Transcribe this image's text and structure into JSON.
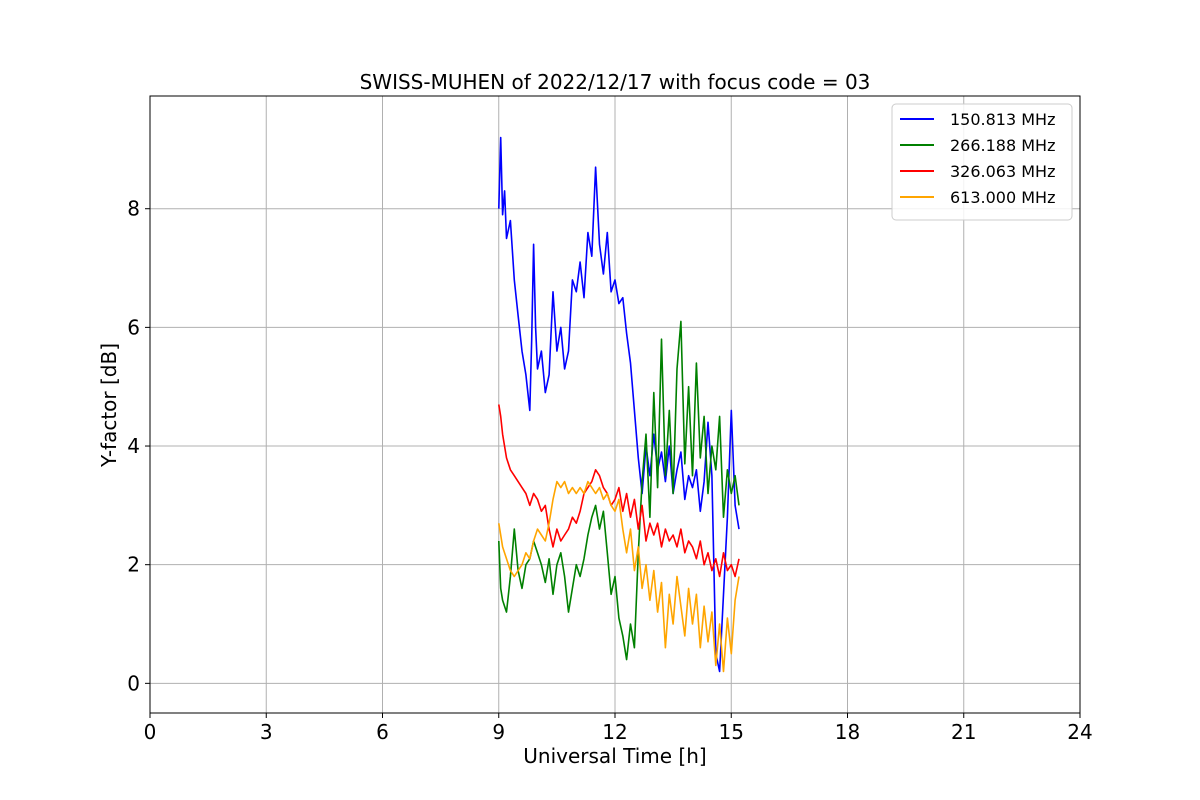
{
  "chart_data": {
    "type": "line",
    "title": "SWISS-MUHEN of 2022/12/17 with focus code = 03",
    "xlabel": "Universal Time [h]",
    "ylabel": "Y-factor [dB]",
    "xlim": [
      0,
      24
    ],
    "ylim": [
      -0.5,
      9.9
    ],
    "xticks": [
      0,
      3,
      6,
      9,
      12,
      15,
      18,
      21,
      24
    ],
    "yticks": [
      0,
      2,
      4,
      6,
      8
    ],
    "grid": true,
    "legend_position": "top-right",
    "series": [
      {
        "name": "150.813 MHz",
        "color": "#0000ff",
        "points": [
          [
            9.0,
            8.0
          ],
          [
            9.05,
            9.2
          ],
          [
            9.1,
            7.9
          ],
          [
            9.15,
            8.3
          ],
          [
            9.2,
            7.5
          ],
          [
            9.3,
            7.8
          ],
          [
            9.4,
            6.8
          ],
          [
            9.5,
            6.2
          ],
          [
            9.6,
            5.6
          ],
          [
            9.7,
            5.2
          ],
          [
            9.8,
            4.6
          ],
          [
            9.85,
            5.8
          ],
          [
            9.9,
            7.4
          ],
          [
            9.95,
            6.0
          ],
          [
            10.0,
            5.3
          ],
          [
            10.1,
            5.6
          ],
          [
            10.2,
            4.9
          ],
          [
            10.3,
            5.2
          ],
          [
            10.4,
            6.6
          ],
          [
            10.5,
            5.6
          ],
          [
            10.6,
            6.0
          ],
          [
            10.7,
            5.3
          ],
          [
            10.8,
            5.6
          ],
          [
            10.9,
            6.8
          ],
          [
            11.0,
            6.6
          ],
          [
            11.1,
            7.1
          ],
          [
            11.2,
            6.5
          ],
          [
            11.3,
            7.6
          ],
          [
            11.4,
            7.2
          ],
          [
            11.5,
            8.7
          ],
          [
            11.6,
            7.4
          ],
          [
            11.7,
            6.9
          ],
          [
            11.8,
            7.6
          ],
          [
            11.9,
            6.6
          ],
          [
            12.0,
            6.8
          ],
          [
            12.1,
            6.4
          ],
          [
            12.2,
            6.5
          ],
          [
            12.3,
            5.9
          ],
          [
            12.4,
            5.4
          ],
          [
            12.5,
            4.6
          ],
          [
            12.6,
            3.8
          ],
          [
            12.7,
            3.2
          ],
          [
            12.8,
            4.0
          ],
          [
            12.9,
            3.5
          ],
          [
            13.0,
            4.2
          ],
          [
            13.1,
            3.6
          ],
          [
            13.2,
            3.9
          ],
          [
            13.3,
            3.4
          ],
          [
            13.4,
            4.0
          ],
          [
            13.5,
            3.2
          ],
          [
            13.6,
            3.6
          ],
          [
            13.7,
            3.9
          ],
          [
            13.8,
            3.1
          ],
          [
            13.9,
            3.5
          ],
          [
            14.0,
            3.3
          ],
          [
            14.1,
            3.6
          ],
          [
            14.2,
            2.9
          ],
          [
            14.3,
            3.4
          ],
          [
            14.4,
            4.4
          ],
          [
            14.5,
            3.5
          ],
          [
            14.6,
            0.5
          ],
          [
            14.7,
            0.2
          ],
          [
            14.8,
            1.5
          ],
          [
            14.9,
            2.8
          ],
          [
            15.0,
            4.6
          ],
          [
            15.1,
            3.0
          ],
          [
            15.2,
            2.6
          ]
        ]
      },
      {
        "name": "266.188 MHz",
        "color": "#008000",
        "points": [
          [
            9.0,
            2.4
          ],
          [
            9.05,
            1.6
          ],
          [
            9.1,
            1.4
          ],
          [
            9.2,
            1.2
          ],
          [
            9.3,
            1.8
          ],
          [
            9.4,
            2.6
          ],
          [
            9.5,
            1.9
          ],
          [
            9.6,
            1.6
          ],
          [
            9.7,
            2.0
          ],
          [
            9.8,
            2.1
          ],
          [
            9.9,
            2.4
          ],
          [
            10.0,
            2.2
          ],
          [
            10.1,
            2.0
          ],
          [
            10.2,
            1.7
          ],
          [
            10.3,
            2.1
          ],
          [
            10.4,
            1.5
          ],
          [
            10.5,
            2.0
          ],
          [
            10.6,
            2.2
          ],
          [
            10.7,
            1.8
          ],
          [
            10.8,
            1.2
          ],
          [
            10.9,
            1.6
          ],
          [
            11.0,
            2.0
          ],
          [
            11.1,
            1.8
          ],
          [
            11.2,
            2.1
          ],
          [
            11.3,
            2.5
          ],
          [
            11.4,
            2.8
          ],
          [
            11.5,
            3.0
          ],
          [
            11.6,
            2.6
          ],
          [
            11.7,
            2.9
          ],
          [
            11.8,
            2.2
          ],
          [
            11.9,
            1.5
          ],
          [
            12.0,
            1.8
          ],
          [
            12.1,
            1.1
          ],
          [
            12.2,
            0.8
          ],
          [
            12.3,
            0.4
          ],
          [
            12.4,
            1.0
          ],
          [
            12.5,
            0.6
          ],
          [
            12.6,
            2.2
          ],
          [
            12.7,
            3.4
          ],
          [
            12.8,
            4.2
          ],
          [
            12.9,
            2.8
          ],
          [
            13.0,
            4.9
          ],
          [
            13.1,
            3.3
          ],
          [
            13.2,
            5.8
          ],
          [
            13.3,
            3.5
          ],
          [
            13.4,
            4.6
          ],
          [
            13.5,
            3.2
          ],
          [
            13.6,
            5.3
          ],
          [
            13.7,
            6.1
          ],
          [
            13.8,
            3.7
          ],
          [
            13.9,
            5.0
          ],
          [
            14.0,
            3.5
          ],
          [
            14.1,
            5.4
          ],
          [
            14.2,
            3.8
          ],
          [
            14.3,
            4.5
          ],
          [
            14.4,
            3.2
          ],
          [
            14.5,
            4.0
          ],
          [
            14.6,
            3.6
          ],
          [
            14.7,
            4.5
          ],
          [
            14.8,
            2.8
          ],
          [
            14.9,
            3.6
          ],
          [
            15.0,
            3.2
          ],
          [
            15.1,
            3.5
          ],
          [
            15.2,
            3.0
          ]
        ]
      },
      {
        "name": "326.063 MHz",
        "color": "#ff0000",
        "points": [
          [
            9.0,
            4.7
          ],
          [
            9.05,
            4.5
          ],
          [
            9.1,
            4.2
          ],
          [
            9.2,
            3.8
          ],
          [
            9.3,
            3.6
          ],
          [
            9.4,
            3.5
          ],
          [
            9.5,
            3.4
          ],
          [
            9.6,
            3.3
          ],
          [
            9.7,
            3.2
          ],
          [
            9.8,
            3.0
          ],
          [
            9.9,
            3.2
          ],
          [
            10.0,
            3.1
          ],
          [
            10.1,
            2.9
          ],
          [
            10.2,
            3.0
          ],
          [
            10.3,
            2.6
          ],
          [
            10.4,
            2.3
          ],
          [
            10.5,
            2.6
          ],
          [
            10.6,
            2.4
          ],
          [
            10.7,
            2.5
          ],
          [
            10.8,
            2.6
          ],
          [
            10.9,
            2.8
          ],
          [
            11.0,
            2.7
          ],
          [
            11.1,
            2.9
          ],
          [
            11.2,
            3.2
          ],
          [
            11.3,
            3.3
          ],
          [
            11.4,
            3.4
          ],
          [
            11.5,
            3.6
          ],
          [
            11.6,
            3.5
          ],
          [
            11.7,
            3.3
          ],
          [
            11.8,
            3.2
          ],
          [
            11.9,
            3.0
          ],
          [
            12.0,
            3.1
          ],
          [
            12.1,
            3.3
          ],
          [
            12.2,
            2.9
          ],
          [
            12.3,
            3.2
          ],
          [
            12.4,
            2.8
          ],
          [
            12.5,
            3.1
          ],
          [
            12.6,
            2.6
          ],
          [
            12.7,
            3.0
          ],
          [
            12.8,
            2.4
          ],
          [
            12.9,
            2.7
          ],
          [
            13.0,
            2.5
          ],
          [
            13.1,
            2.7
          ],
          [
            13.2,
            2.3
          ],
          [
            13.3,
            2.6
          ],
          [
            13.4,
            2.4
          ],
          [
            13.5,
            2.5
          ],
          [
            13.6,
            2.3
          ],
          [
            13.7,
            2.6
          ],
          [
            13.8,
            2.2
          ],
          [
            13.9,
            2.4
          ],
          [
            14.0,
            2.3
          ],
          [
            14.1,
            2.1
          ],
          [
            14.2,
            2.4
          ],
          [
            14.3,
            2.0
          ],
          [
            14.4,
            2.2
          ],
          [
            14.5,
            1.9
          ],
          [
            14.6,
            2.1
          ],
          [
            14.7,
            1.8
          ],
          [
            14.8,
            2.2
          ],
          [
            14.9,
            1.9
          ],
          [
            15.0,
            2.0
          ],
          [
            15.1,
            1.8
          ],
          [
            15.2,
            2.1
          ]
        ]
      },
      {
        "name": "613.000 MHz",
        "color": "#ffa500",
        "points": [
          [
            9.0,
            2.7
          ],
          [
            9.05,
            2.5
          ],
          [
            9.1,
            2.3
          ],
          [
            9.2,
            2.1
          ],
          [
            9.3,
            1.9
          ],
          [
            9.4,
            1.8
          ],
          [
            9.5,
            1.9
          ],
          [
            9.6,
            2.0
          ],
          [
            9.7,
            2.2
          ],
          [
            9.8,
            2.1
          ],
          [
            9.9,
            2.4
          ],
          [
            10.0,
            2.6
          ],
          [
            10.1,
            2.5
          ],
          [
            10.2,
            2.4
          ],
          [
            10.3,
            2.7
          ],
          [
            10.4,
            3.1
          ],
          [
            10.5,
            3.4
          ],
          [
            10.6,
            3.3
          ],
          [
            10.7,
            3.4
          ],
          [
            10.8,
            3.2
          ],
          [
            10.9,
            3.3
          ],
          [
            11.0,
            3.2
          ],
          [
            11.1,
            3.3
          ],
          [
            11.2,
            3.2
          ],
          [
            11.3,
            3.4
          ],
          [
            11.4,
            3.3
          ],
          [
            11.5,
            3.2
          ],
          [
            11.6,
            3.3
          ],
          [
            11.7,
            3.1
          ],
          [
            11.8,
            3.2
          ],
          [
            11.9,
            3.0
          ],
          [
            12.0,
            2.9
          ],
          [
            12.1,
            3.1
          ],
          [
            12.2,
            2.6
          ],
          [
            12.3,
            2.2
          ],
          [
            12.4,
            2.6
          ],
          [
            12.5,
            1.9
          ],
          [
            12.6,
            2.3
          ],
          [
            12.7,
            1.6
          ],
          [
            12.8,
            2.0
          ],
          [
            12.9,
            1.4
          ],
          [
            13.0,
            1.9
          ],
          [
            13.1,
            1.2
          ],
          [
            13.2,
            1.7
          ],
          [
            13.3,
            0.6
          ],
          [
            13.4,
            1.5
          ],
          [
            13.5,
            1.0
          ],
          [
            13.6,
            1.8
          ],
          [
            13.7,
            1.3
          ],
          [
            13.8,
            0.8
          ],
          [
            13.9,
            1.6
          ],
          [
            14.0,
            1.0
          ],
          [
            14.1,
            1.5
          ],
          [
            14.2,
            0.6
          ],
          [
            14.3,
            1.3
          ],
          [
            14.4,
            0.7
          ],
          [
            14.5,
            1.2
          ],
          [
            14.6,
            0.3
          ],
          [
            14.7,
            1.0
          ],
          [
            14.8,
            0.2
          ],
          [
            14.9,
            1.1
          ],
          [
            15.0,
            0.5
          ],
          [
            15.1,
            1.4
          ],
          [
            15.2,
            1.8
          ]
        ]
      }
    ]
  }
}
